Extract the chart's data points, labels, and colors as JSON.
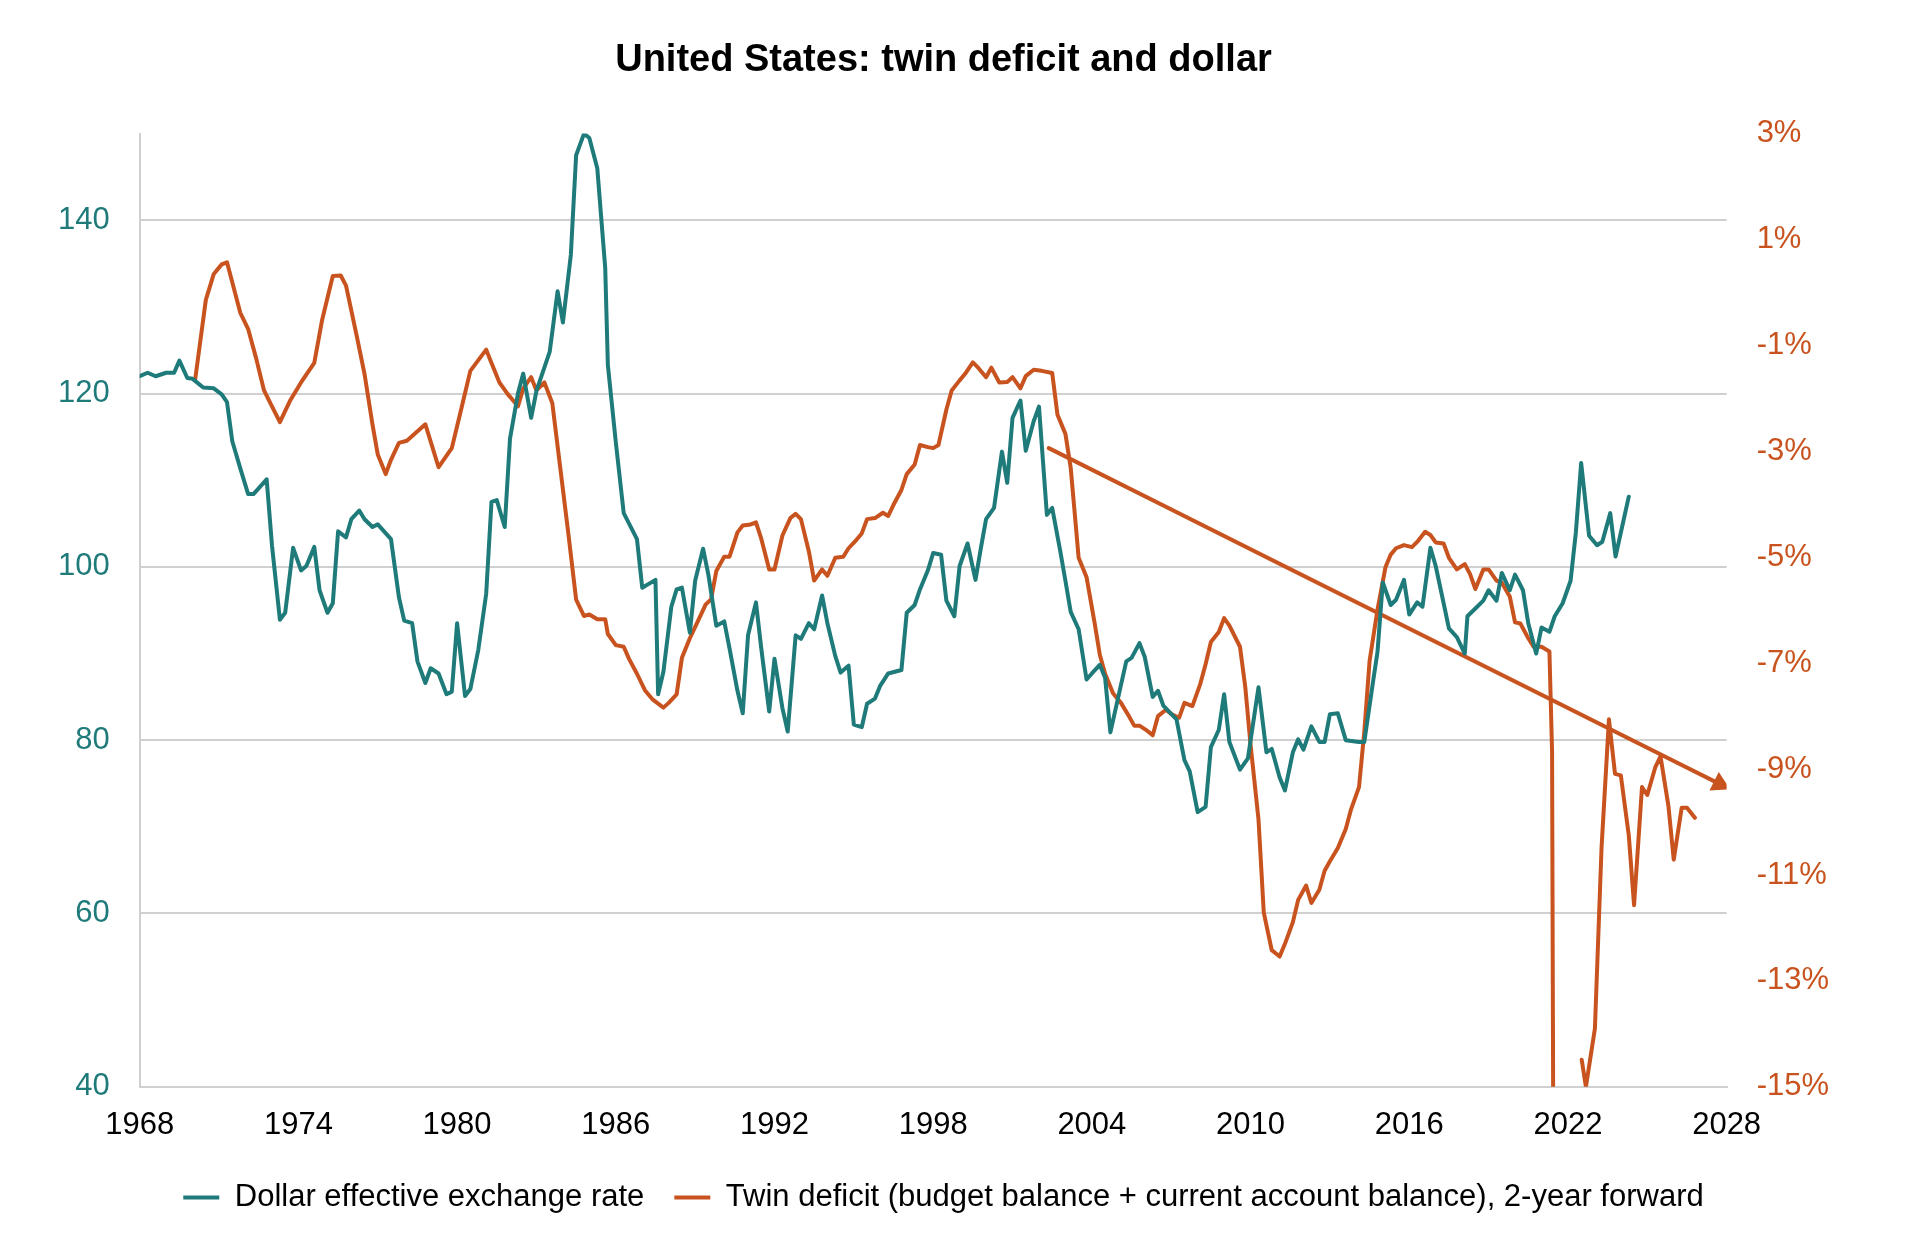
{
  "chart_data": {
    "type": "line",
    "title": "United States: twin deficit and dollar",
    "xlim": [
      1968,
      2028
    ],
    "xticks": [
      1968,
      1974,
      1980,
      1986,
      1992,
      1998,
      2004,
      2010,
      2016,
      2022,
      2028
    ],
    "ylim": [
      40,
      150
    ],
    "yticks": [
      40,
      60,
      80,
      100,
      120,
      140
    ],
    "y2lim": [
      -15,
      3
    ],
    "y2ticks": [
      {
        "value": -15,
        "label": "-15%"
      },
      {
        "value": -13,
        "label": "-13%"
      },
      {
        "value": -11,
        "label": "-11%"
      },
      {
        "value": -9,
        "label": "-9%"
      },
      {
        "value": -7,
        "label": "-7%"
      },
      {
        "value": -5,
        "label": "-5%"
      },
      {
        "value": -3,
        "label": "-3%"
      },
      {
        "value": -1,
        "label": "-1%"
      },
      {
        "value": 1,
        "label": "1%"
      },
      {
        "value": 3,
        "label": "3%"
      }
    ],
    "grid": "y",
    "legend": "bottom",
    "series": [
      {
        "name": "Dollar effective exchange rate",
        "color": "#1f7a7a",
        "x": [
          1968.0,
          1968.3,
          1968.6,
          1969.0,
          1969.3,
          1969.5,
          1969.8,
          1970.0,
          1970.4,
          1970.8,
          1971.1,
          1971.3,
          1971.5,
          1971.8,
          1972.1,
          1972.3,
          1972.8,
          1973.0,
          1973.3,
          1973.5,
          1973.8,
          1974.1,
          1974.3,
          1974.6,
          1974.8,
          1975.1,
          1975.3,
          1975.5,
          1975.8,
          1976.0,
          1976.3,
          1976.5,
          1976.8,
          1977.0,
          1977.5,
          1977.8,
          1978.0,
          1978.3,
          1978.5,
          1978.8,
          1979.0,
          1979.3,
          1979.6,
          1979.8,
          1980.0,
          1980.3,
          1980.5,
          1980.8,
          1981.1,
          1981.3,
          1981.5,
          1981.8,
          1982.0,
          1982.3,
          1982.5,
          1982.8,
          1983.0,
          1983.5,
          1983.8,
          1984.0,
          1984.3,
          1984.5,
          1984.8,
          1985.0,
          1985.3,
          1985.6,
          1985.7,
          1986.0,
          1986.3,
          1986.8,
          1987.0,
          1987.5,
          1987.6,
          1987.8,
          1988.1,
          1988.3,
          1988.5,
          1988.8,
          1989.0,
          1989.3,
          1989.5,
          1989.8,
          1990.1,
          1990.3,
          1990.6,
          1990.8,
          1991.0,
          1991.3,
          1991.5,
          1991.8,
          1992.0,
          1992.3,
          1992.5,
          1992.8,
          1993.0,
          1993.3,
          1993.5,
          1993.8,
          1994.0,
          1994.3,
          1994.5,
          1994.8,
          1995.0,
          1995.3,
          1995.5,
          1995.8,
          1996.0,
          1996.3,
          1996.8,
          1997.0,
          1997.3,
          1997.5,
          1997.8,
          1998.0,
          1998.3,
          1998.5,
          1998.8,
          1999.0,
          1999.3,
          1999.6,
          1999.8,
          2000.0,
          2000.3,
          2000.6,
          2000.8,
          2001.0,
          2001.3,
          2001.5,
          2001.8,
          2002.0,
          2002.3,
          2002.5,
          2002.8,
          2003.0,
          2003.2,
          2003.5,
          2003.8,
          2004.0,
          2004.3,
          2004.5,
          2004.7,
          2005.3,
          2005.5,
          2005.8,
          2006.0,
          2006.3,
          2006.5,
          2006.7,
          2007.2,
          2007.5,
          2007.7,
          2008.0,
          2008.3,
          2008.5,
          2008.8,
          2009.0,
          2009.2,
          2009.6,
          2009.9,
          2010.3,
          2010.6,
          2010.8,
          2011.1,
          2011.3,
          2011.6,
          2011.8,
          2012.0,
          2012.3,
          2012.6,
          2012.8,
          2013.0,
          2013.3,
          2013.6,
          2014.1,
          2014.3,
          2014.6,
          2014.8,
          2015.0,
          2015.3,
          2015.5,
          2015.8,
          2016.0,
          2016.3,
          2016.5,
          2016.8,
          2017.0,
          2017.3,
          2017.5,
          2017.8,
          2018.1,
          2018.2,
          2018.5,
          2018.8,
          2019.0,
          2019.3,
          2019.5,
          2019.8,
          2020.0,
          2020.3,
          2020.5,
          2020.8,
          2021.0,
          2021.3,
          2021.5,
          2021.8,
          2022.1,
          2022.3,
          2022.5,
          2022.8,
          2023.1,
          2023.3,
          2023.6,
          2023.8,
          2024.3
        ],
        "values": [
          122.0,
          122.4,
          122.0,
          122.4,
          122.4,
          123.8,
          121.8,
          121.7,
          120.7,
          120.6,
          119.9,
          119.0,
          114.5,
          111.4,
          108.4,
          108.4,
          110.1,
          102.5,
          93.9,
          94.7,
          102.2,
          99.6,
          100.1,
          102.3,
          97.3,
          94.7,
          95.8,
          104.1,
          103.4,
          105.5,
          106.5,
          105.5,
          104.6,
          104.9,
          103.2,
          96.5,
          93.8,
          93.5,
          89.1,
          86.6,
          88.3,
          87.7,
          85.3,
          85.6,
          93.5,
          85.1,
          85.9,
          90.4,
          96.9,
          107.5,
          107.7,
          104.6,
          114.8,
          120.0,
          122.3,
          117.2,
          120.3,
          124.8,
          131.8,
          128.2,
          136.0,
          147.5,
          150,
          149.5,
          146.0,
          134.5,
          123.3,
          114.4,
          106.2,
          103.2,
          97.6,
          98.5,
          85.3,
          87.9,
          95.4,
          97.4,
          97.6,
          92.4,
          98.4,
          102.1,
          99.1,
          93.2,
          93.7,
          90.6,
          85.7,
          83.1,
          92.1,
          95.9,
          90.6,
          83.3,
          89.4,
          83.7,
          81.0,
          92.1,
          91.7,
          93.5,
          92.8,
          96.7,
          93.5,
          89.7,
          87.8,
          88.6,
          81.8,
          81.5,
          84.2,
          84.8,
          86.3,
          87.7,
          88.1,
          94.7,
          95.6,
          97.4,
          99.6,
          101.6,
          101.4,
          96.1,
          94.3,
          100.1,
          102.7,
          98.5,
          102.1,
          105.5,
          106.8,
          113.3,
          109.7,
          117.2,
          119.2,
          113.4,
          116.8,
          118.5,
          106.0,
          106.8,
          101.9,
          98.4,
          94.8,
          92.8,
          87.0,
          87.7,
          88.7,
          87.2,
          80.9,
          89.1,
          89.5,
          91.2,
          89.6,
          85.0,
          85.7,
          84.0,
          82.4,
          77.7,
          76.4,
          71.7,
          72.3,
          79.2,
          81.2,
          85.3,
          79.8,
          76.6,
          77.9,
          86.1,
          78.6,
          79.0,
          75.7,
          74.2,
          78.6,
          80.1,
          78.9,
          81.6,
          79.8,
          79.8,
          83.0,
          83.1,
          80.0,
          79.8,
          79.8,
          86.1,
          90.2,
          98.2,
          95.6,
          96.2,
          98.5,
          94.5,
          95.9,
          95.4,
          102.2,
          100.1,
          95.8,
          92.9,
          91.9,
          90.0,
          94.3,
          95.2,
          96.1,
          97.3,
          96.1,
          99.3,
          97.3,
          99.1,
          97.3,
          93.5,
          90.0,
          93.0,
          92.5,
          94.3,
          95.8,
          98.4,
          104.0,
          112.0,
          103.6,
          102.5,
          102.9,
          106.2,
          101.2,
          108.1
        ]
      },
      {
        "name": "Twin deficit (budget balance + current account balance), 2-year forward",
        "color": "#c8531e",
        "axis": "y2",
        "x": [
          1970.1,
          1970.5,
          1970.8,
          1971.1,
          1971.3,
          1971.8,
          1972.1,
          1972.4,
          1972.7,
          1973.0,
          1973.3,
          1973.7,
          1974.1,
          1974.6,
          1974.9,
          1975.3,
          1975.6,
          1975.8,
          1976.2,
          1976.5,
          1976.8,
          1977.0,
          1977.3,
          1977.5,
          1977.8,
          1978.1,
          1978.8,
          1979.3,
          1979.8,
          1980.2,
          1980.5,
          1981.1,
          1981.3,
          1981.6,
          1981.9,
          1982.3,
          1982.5,
          1982.8,
          1983.0,
          1983.3,
          1983.6,
          1983.9,
          1984.2,
          1984.5,
          1984.8,
          1985.0,
          1985.3,
          1985.6,
          1985.7,
          1986.0,
          1986.3,
          1986.5,
          1986.8,
          1987.1,
          1987.4,
          1987.8,
          1988.0,
          1988.3,
          1988.5,
          1988.8,
          1989.1,
          1989.4,
          1989.6,
          1989.8,
          1990.1,
          1990.3,
          1990.6,
          1990.8,
          1991.1,
          1991.3,
          1991.5,
          1991.8,
          1992.0,
          1992.3,
          1992.6,
          1992.8,
          1993.0,
          1993.3,
          1993.5,
          1993.8,
          1994.0,
          1994.3,
          1994.6,
          1994.8,
          1995.1,
          1995.3,
          1995.5,
          1995.8,
          1996.1,
          1996.3,
          1996.5,
          1996.8,
          1997.0,
          1997.3,
          1997.5,
          1997.8,
          1998.0,
          1998.2,
          1998.5,
          1998.7,
          1999.0,
          1999.2,
          1999.5,
          1999.7,
          2000.0,
          2000.2,
          2000.5,
          2000.8,
          2001.0,
          2001.3,
          2001.5,
          2001.8,
          2002.1,
          2002.5,
          2002.7,
          2003.0,
          2003.2,
          2003.5,
          2003.8,
          2004.1,
          2004.3,
          2004.5,
          2004.8,
          2005.1,
          2005.4,
          2005.6,
          2005.8,
          2006.1,
          2006.3,
          2006.5,
          2006.8,
          2007.0,
          2007.3,
          2007.5,
          2007.8,
          2008.1,
          2008.3,
          2008.5,
          2008.8,
          2009.0,
          2009.2,
          2009.6,
          2009.8,
          2010.0,
          2010.3,
          2010.5,
          2010.8,
          2011.1,
          2011.3,
          2011.6,
          2011.8,
          2012.1,
          2012.3,
          2012.6,
          2012.8,
          2013.0,
          2013.3,
          2013.6,
          2013.8,
          2014.1,
          2014.3,
          2014.5,
          2014.8,
          2015.1,
          2015.3,
          2015.5,
          2015.8,
          2016.1,
          2016.3,
          2016.6,
          2016.8,
          2017.0,
          2017.3,
          2017.5,
          2017.8,
          2018.1,
          2018.3,
          2018.5,
          2018.8,
          2019.0,
          2019.3,
          2019.5,
          2019.8,
          2020.0,
          2020.2,
          2020.5,
          2020.7,
          2021.0,
          2021.3,
          2021.4,
          2021.44,
          2022.0,
          2022.52,
          2022.68,
          2023.02,
          2023.27,
          2023.55,
          2023.78,
          2024.0,
          2024.3,
          2024.5,
          2024.8,
          2025.0,
          2025.3,
          2025.5,
          2025.8,
          2026.0,
          2026.3,
          2026.5,
          2026.8
        ],
        "values": [
          -1.63,
          -0.14,
          0.35,
          0.53,
          0.57,
          -0.38,
          -0.69,
          -1.24,
          -1.85,
          -2.15,
          -2.45,
          -2.03,
          -1.7,
          -1.33,
          -0.51,
          0.31,
          0.32,
          0.13,
          -0.81,
          -1.54,
          -2.49,
          -3.06,
          -3.43,
          -3.16,
          -2.84,
          -2.8,
          -2.49,
          -3.3,
          -2.94,
          -2.11,
          -1.48,
          -1.08,
          -1.33,
          -1.7,
          -1.91,
          -2.15,
          -1.81,
          -1.6,
          -1.85,
          -1.7,
          -2.09,
          -3.31,
          -4.53,
          -5.8,
          -6.11,
          -6.08,
          -6.17,
          -6.17,
          -6.45,
          -6.66,
          -6.69,
          -6.92,
          -7.2,
          -7.51,
          -7.69,
          -7.84,
          -7.75,
          -7.59,
          -6.9,
          -6.53,
          -6.21,
          -5.89,
          -5.8,
          -5.26,
          -4.99,
          -4.99,
          -4.53,
          -4.4,
          -4.38,
          -4.34,
          -4.65,
          -5.23,
          -5.23,
          -4.59,
          -4.26,
          -4.18,
          -4.28,
          -4.89,
          -5.44,
          -5.23,
          -5.35,
          -5.01,
          -4.99,
          -4.83,
          -4.67,
          -4.55,
          -4.28,
          -4.26,
          -4.16,
          -4.22,
          -4.01,
          -3.73,
          -3.43,
          -3.25,
          -2.88,
          -2.92,
          -2.94,
          -2.88,
          -2.21,
          -1.85,
          -1.66,
          -1.54,
          -1.32,
          -1.42,
          -1.6,
          -1.42,
          -1.7,
          -1.69,
          -1.6,
          -1.81,
          -1.58,
          -1.46,
          -1.48,
          -1.52,
          -2.31,
          -2.67,
          -3.31,
          -5.01,
          -5.38,
          -6.23,
          -6.84,
          -7.2,
          -7.57,
          -7.75,
          -8.0,
          -8.18,
          -8.18,
          -8.28,
          -8.36,
          -8.0,
          -7.88,
          -7.96,
          -8.03,
          -7.75,
          -7.81,
          -7.39,
          -7.02,
          -6.6,
          -6.41,
          -6.15,
          -6.29,
          -6.69,
          -7.45,
          -8.54,
          -9.95,
          -11.71,
          -12.42,
          -12.54,
          -12.3,
          -11.89,
          -11.47,
          -11.2,
          -11.53,
          -11.28,
          -10.92,
          -10.74,
          -10.49,
          -10.13,
          -9.76,
          -9.34,
          -8.3,
          -6.96,
          -5.99,
          -5.19,
          -4.95,
          -4.83,
          -4.77,
          -4.81,
          -4.71,
          -4.52,
          -4.58,
          -4.72,
          -4.74,
          -5.01,
          -5.23,
          -5.13,
          -5.32,
          -5.6,
          -5.23,
          -5.23,
          -5.44,
          -5.48,
          -5.74,
          -6.23,
          -6.25,
          -6.53,
          -6.69,
          -6.69,
          -6.78,
          -8.67,
          -15,
          null,
          -14.49,
          -15,
          -13.9,
          -10.49,
          -8.06,
          -9.09,
          -9.12,
          -10.25,
          -11.57,
          -9.34,
          -9.49,
          -8.97,
          -8.76,
          -9.7,
          -10.71,
          -9.73,
          -9.73,
          -9.92
        ]
      },
      {
        "type": "line",
        "color": "#c8531e",
        "axis": "y2",
        "x": [
          2002.37,
          2027.73
        ],
        "values": [
          -2.94,
          -9.28
        ]
      }
    ]
  }
}
